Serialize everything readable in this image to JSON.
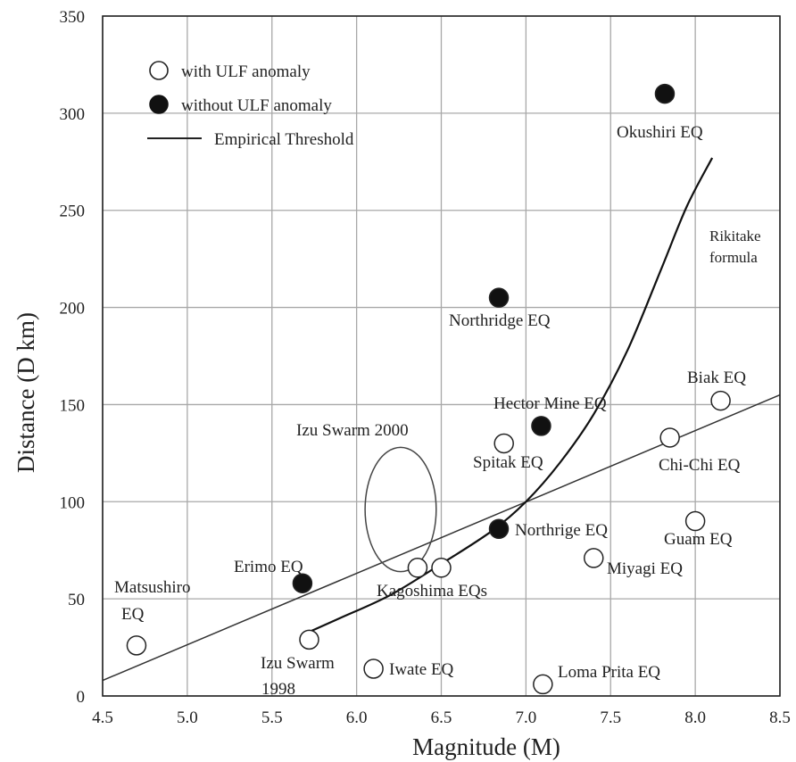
{
  "chart_data": {
    "type": "scatter",
    "xlabel": "Magnitude (M)",
    "ylabel": "Distance (D km)",
    "xlim": [
      4.5,
      8.5
    ],
    "ylim": [
      0,
      350
    ],
    "xticks": [
      "4.5",
      "5.0",
      "5.5",
      "6.0",
      "6.5",
      "7.0",
      "7.5",
      "8.0",
      "8.5"
    ],
    "yticks": [
      "0",
      "50",
      "100",
      "150",
      "200",
      "250",
      "300",
      "350"
    ],
    "grid": true,
    "legend_position": "top-left",
    "legend": {
      "with": "with ULF anomaly",
      "without": "without ULF anomaly",
      "threshold": "Empirical Threshold"
    },
    "series": [
      {
        "name": "with ULF anomaly",
        "marker": "open-circle",
        "points": [
          {
            "x": 4.7,
            "y": 26,
            "label": "Matsushiro EQ"
          },
          {
            "x": 5.72,
            "y": 29,
            "label": "Izu Swarm 1998"
          },
          {
            "x": 6.1,
            "y": 14,
            "label": "Iwate EQ"
          },
          {
            "x": 6.36,
            "y": 66,
            "label": ""
          },
          {
            "x": 6.5,
            "y": 66,
            "label": "Kagoshima EQs"
          },
          {
            "x": 6.87,
            "y": 130,
            "label": "Spitak EQ"
          },
          {
            "x": 7.1,
            "y": 6,
            "label": "Loma Prita EQ"
          },
          {
            "x": 7.4,
            "y": 71,
            "label": "Miyagi EQ"
          },
          {
            "x": 7.85,
            "y": 133,
            "label": "Chi-Chi EQ"
          },
          {
            "x": 8.0,
            "y": 90,
            "label": "Guam EQ"
          },
          {
            "x": 8.15,
            "y": 152,
            "label": "Biak EQ"
          }
        ]
      },
      {
        "name": "without ULF anomaly",
        "marker": "filled-circle",
        "points": [
          {
            "x": 5.68,
            "y": 58,
            "label": "Erimo EQ"
          },
          {
            "x": 6.84,
            "y": 205,
            "label": "Northridge EQ"
          },
          {
            "x": 6.84,
            "y": 86,
            "label": "Northrige EQ"
          },
          {
            "x": 7.09,
            "y": 139,
            "label": "Hector Mine EQ"
          },
          {
            "x": 7.82,
            "y": 310,
            "label": "Okushiri EQ"
          }
        ]
      }
    ],
    "lines": {
      "empirical_threshold": {
        "x1": 4.5,
        "y1": 8,
        "x2": 8.5,
        "y2": 155
      },
      "rikitake_formula": {
        "label": "Rikitake formula",
        "points": [
          [
            5.72,
            33
          ],
          [
            5.9,
            40
          ],
          [
            6.2,
            52
          ],
          [
            6.5,
            68
          ],
          [
            6.8,
            85
          ],
          [
            7.0,
            100
          ],
          [
            7.2,
            120
          ],
          [
            7.4,
            145
          ],
          [
            7.6,
            178
          ],
          [
            7.8,
            220
          ],
          [
            7.95,
            252
          ],
          [
            8.1,
            277
          ]
        ]
      }
    },
    "annotations": [
      {
        "text": "Izu Swarm 2000",
        "ellipse": {
          "cx": 6.26,
          "cy": 96,
          "rx": 0.21,
          "ry": 32
        }
      }
    ]
  }
}
